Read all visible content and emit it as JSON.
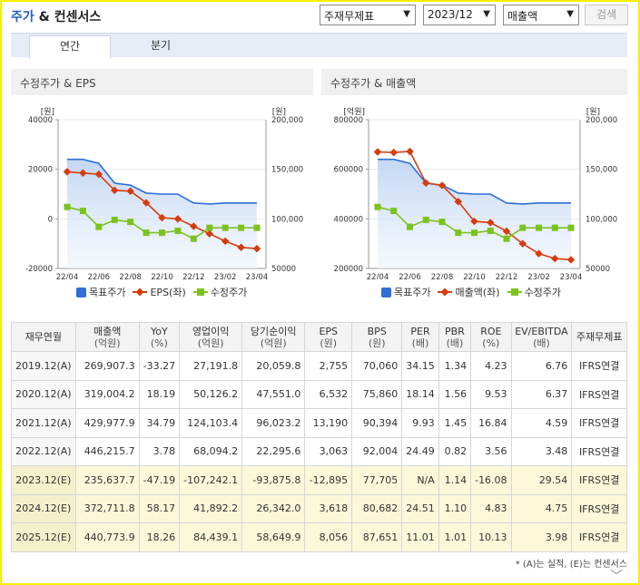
{
  "header": {
    "title_highlight": "주가",
    "title_rest": " & 컨센서스",
    "select_type": "주재무제표",
    "select_period": "2023/12",
    "select_metric": "매출액",
    "search_label": "검색"
  },
  "tabs": [
    {
      "label": "연간",
      "active": true
    },
    {
      "label": "분기",
      "active": false
    }
  ],
  "chart_left": {
    "title": "수정주가 & EPS",
    "left_unit": "[원]",
    "right_unit": "[원]",
    "left_ticks": [
      "40000",
      "20000",
      "0",
      "-20000"
    ],
    "right_ticks": [
      "200,000",
      "150,000",
      "100,000",
      "50000"
    ],
    "legend": [
      "목표주가",
      "EPS(좌)",
      "수정주가"
    ]
  },
  "chart_right": {
    "title": "수정주가 & 매출액",
    "left_unit": "[억원]",
    "right_unit": "[원]",
    "left_ticks": [
      "800000",
      "600000",
      "400000",
      "200000"
    ],
    "right_ticks": [
      "200,000",
      "150,000",
      "100,000",
      "50000"
    ],
    "legend": [
      "목표주가",
      "매출액(좌)",
      "수정주가"
    ]
  },
  "chart_data": [
    {
      "type": "line",
      "title": "수정주가 & EPS",
      "x": [
        "22/04",
        "22/05",
        "22/06",
        "22/07",
        "22/08",
        "22/09",
        "22/10",
        "22/11",
        "22/12",
        "23/01",
        "23/02",
        "23/03",
        "23/04"
      ],
      "x_tick_labels": [
        "22/04",
        "22/06",
        "22/08",
        "22/10",
        "22/12",
        "23/02",
        "23/04"
      ],
      "ylim_left": [
        -20000,
        40000
      ],
      "ylim_right": [
        50000,
        200000
      ],
      "series": [
        {
          "name": "목표주가",
          "axis": "right",
          "style": "area",
          "color": "#2f6fd6",
          "values": [
            160000,
            160000,
            156000,
            136000,
            134000,
            126000,
            125000,
            125000,
            116000,
            115000,
            116000,
            116000,
            116000
          ]
        },
        {
          "name": "EPS(좌)",
          "axis": "left",
          "style": "line-diamond",
          "color": "#d43c0c",
          "values": [
            19000,
            18500,
            18000,
            11500,
            11200,
            6500,
            500,
            0,
            -3000,
            -6000,
            -9000,
            -11500,
            -12000
          ]
        },
        {
          "name": "수정주가",
          "axis": "right",
          "style": "line-square",
          "color": "#7cc21e",
          "values": [
            112000,
            108000,
            92000,
            99000,
            97000,
            86000,
            86000,
            88000,
            80000,
            91000,
            91000,
            91000,
            91000
          ]
        }
      ]
    },
    {
      "type": "line",
      "title": "수정주가 & 매출액",
      "x": [
        "22/04",
        "22/05",
        "22/06",
        "22/07",
        "22/08",
        "22/09",
        "22/10",
        "22/11",
        "22/12",
        "23/01",
        "23/02",
        "23/03",
        "23/04"
      ],
      "x_tick_labels": [
        "22/04",
        "22/06",
        "22/08",
        "22/10",
        "22/12",
        "23/02",
        "23/04"
      ],
      "ylim_left": [
        200000,
        800000
      ],
      "ylim_right": [
        50000,
        200000
      ],
      "series": [
        {
          "name": "목표주가",
          "axis": "right",
          "style": "area",
          "color": "#2f6fd6",
          "values": [
            160000,
            160000,
            156000,
            136000,
            134000,
            126000,
            125000,
            125000,
            116000,
            115000,
            116000,
            116000,
            116000
          ]
        },
        {
          "name": "매출액(좌)",
          "axis": "left",
          "style": "line-diamond",
          "color": "#d43c0c",
          "values": [
            670000,
            668000,
            672000,
            545000,
            535000,
            470000,
            390000,
            385000,
            350000,
            300000,
            260000,
            240000,
            235000
          ]
        },
        {
          "name": "수정주가",
          "axis": "right",
          "style": "line-square",
          "color": "#7cc21e",
          "values": [
            112000,
            108000,
            92000,
            99000,
            97000,
            86000,
            86000,
            88000,
            80000,
            91000,
            91000,
            91000,
            91000
          ]
        }
      ]
    }
  ],
  "table": {
    "headers": [
      {
        "main": "재무연월",
        "sub": ""
      },
      {
        "main": "매출액",
        "sub": "(억원)"
      },
      {
        "main": "YoY",
        "sub": "(%)"
      },
      {
        "main": "영업이익",
        "sub": "(억원)"
      },
      {
        "main": "당기순이익",
        "sub": "(억원)"
      },
      {
        "main": "EPS",
        "sub": "(원)"
      },
      {
        "main": "BPS",
        "sub": "(원)"
      },
      {
        "main": "PER",
        "sub": "(배)"
      },
      {
        "main": "PBR",
        "sub": "(배)"
      },
      {
        "main": "ROE",
        "sub": "(%)"
      },
      {
        "main": "EV/EBITDA",
        "sub": "(배)"
      },
      {
        "main": "주재무제표",
        "sub": ""
      }
    ],
    "rows": [
      {
        "estimate": false,
        "cells": [
          "2019.12(A)",
          "269,907.3",
          "-33.27",
          "27,191.8",
          "20,059.8",
          "2,755",
          "70,060",
          "34.15",
          "1.34",
          "4.23",
          "6.76",
          "IFRS연결"
        ]
      },
      {
        "estimate": false,
        "cells": [
          "2020.12(A)",
          "319,004.2",
          "18.19",
          "50,126.2",
          "47,551.0",
          "6,532",
          "75,860",
          "18.14",
          "1.56",
          "9.53",
          "6.37",
          "IFRS연결"
        ]
      },
      {
        "estimate": false,
        "cells": [
          "2021.12(A)",
          "429,977.9",
          "34.79",
          "124,103.4",
          "96,023.2",
          "13,190",
          "90,394",
          "9.93",
          "1.45",
          "16.84",
          "4.59",
          "IFRS연결"
        ]
      },
      {
        "estimate": false,
        "cells": [
          "2022.12(A)",
          "446,215.7",
          "3.78",
          "68,094.2",
          "22,295.6",
          "3,063",
          "92,004",
          "24.49",
          "0.82",
          "3.56",
          "3.48",
          "IFRS연결"
        ]
      },
      {
        "estimate": true,
        "cells": [
          "2023.12(E)",
          "235,637.7",
          "-47.19",
          "-107,242.1",
          "-93,875.8",
          "-12,895",
          "77,705",
          "N/A",
          "1.14",
          "-16.08",
          "29.54",
          "IFRS연결"
        ]
      },
      {
        "estimate": true,
        "cells": [
          "2024.12(E)",
          "372,711.8",
          "58.17",
          "41,892.2",
          "26,342.0",
          "3,618",
          "80,682",
          "24.51",
          "1.10",
          "4.83",
          "4.75",
          "IFRS연결"
        ]
      },
      {
        "estimate": true,
        "cells": [
          "2025.12(E)",
          "440,773.9",
          "18.26",
          "84,439.1",
          "58,649.9",
          "8,056",
          "87,651",
          "11.01",
          "1.01",
          "10.13",
          "3.98",
          "IFRS연결"
        ]
      }
    ]
  },
  "footnote": "* (A)는 실적, (E)는 컨센서스",
  "icons": {
    "select_arrow": "chevron-down-icon",
    "more": "chevron-down-icon"
  }
}
